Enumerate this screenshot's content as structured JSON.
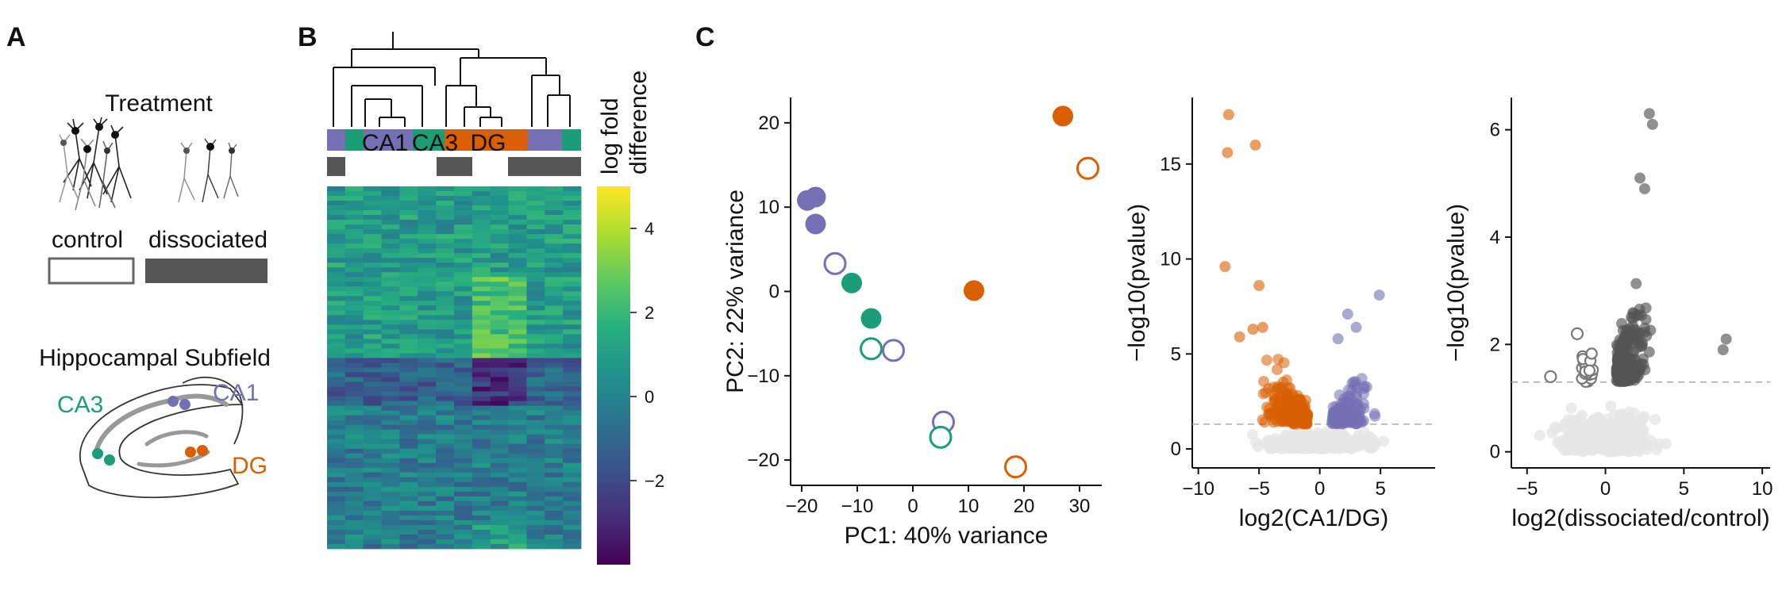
{
  "colors": {
    "ca1": "#7570b3",
    "ca3": "#1b9e77",
    "dg": "#d95f02",
    "dissociated": "#555555",
    "ns": "#e6e6e6",
    "control_open_volcano": "#777777"
  },
  "panelA": {
    "label": "A",
    "treatment_title": "Treatment",
    "control_label": "control",
    "dissociated_label": "dissociated",
    "subfield_title": "Hippocampal Subfield",
    "ca3": "CA3",
    "ca1": "CA1",
    "dg": "DG"
  },
  "panelB": {
    "label": "B",
    "legend_title_line1": "log fold",
    "legend_title_line2": "difference",
    "ca1": "CA1",
    "ca3": "CA3",
    "dg": "DG",
    "colorbar_ticks": [
      "4",
      "2",
      "0",
      "−2"
    ],
    "colorbar_tick_values": [
      4,
      2,
      0,
      -2
    ],
    "colorbar_range": [
      -4,
      5
    ]
  },
  "panelC": {
    "label": "C"
  },
  "chart_data": [
    {
      "type": "heatmap",
      "colorbar_ticks": [
        4,
        2,
        0,
        -2
      ],
      "colorscale": "viridis",
      "colorbar_range": [
        -4,
        5
      ]
    },
    {
      "type": "scatter",
      "xlabel": "PC1: 40% variance",
      "ylabel": "PC2: 22% variance",
      "xticks": [
        "−20",
        "−10",
        "0",
        "10",
        "20",
        "30"
      ],
      "yticks": [
        "20",
        "10",
        "0",
        "−10",
        "−20"
      ],
      "xtick_values": [
        -20,
        -10,
        0,
        10,
        20,
        30
      ],
      "ytick_values": [
        20,
        10,
        0,
        -10,
        -20
      ],
      "xlim": [
        -22,
        34
      ],
      "ylim": [
        -23,
        23
      ],
      "points": [
        {
          "x": -19,
          "y": 10.8,
          "group": "CA1",
          "treatment": "dissociated"
        },
        {
          "x": -17.5,
          "y": 11.2,
          "group": "CA1",
          "treatment": "dissociated"
        },
        {
          "x": -17.5,
          "y": 8,
          "group": "CA1",
          "treatment": "dissociated"
        },
        {
          "x": -14,
          "y": 3.3,
          "group": "CA1",
          "treatment": "control"
        },
        {
          "x": -11,
          "y": 1,
          "group": "CA3",
          "treatment": "dissociated"
        },
        {
          "x": -7.5,
          "y": -3.2,
          "group": "CA3",
          "treatment": "dissociated"
        },
        {
          "x": -7.5,
          "y": -6.8,
          "group": "CA3",
          "treatment": "control"
        },
        {
          "x": -3.5,
          "y": -7,
          "group": "CA1",
          "treatment": "control"
        },
        {
          "x": 11,
          "y": 0.1,
          "group": "DG",
          "treatment": "dissociated"
        },
        {
          "x": 27,
          "y": 20.8,
          "group": "DG",
          "treatment": "dissociated"
        },
        {
          "x": 31.5,
          "y": 14.6,
          "group": "DG",
          "treatment": "control"
        },
        {
          "x": 5.5,
          "y": -15.5,
          "group": "CA1",
          "treatment": "control"
        },
        {
          "x": 5,
          "y": -17.3,
          "group": "CA3",
          "treatment": "control"
        },
        {
          "x": 18.5,
          "y": -20.8,
          "group": "DG",
          "treatment": "control"
        }
      ]
    },
    {
      "type": "scatter",
      "xlabel": "log2(CA1/DG)",
      "ylabel": "−log10(pvalue)",
      "xticks": [
        "−10",
        "−5",
        "0",
        "5"
      ],
      "yticks": [
        "15",
        "10",
        "5",
        "0"
      ],
      "xtick_values": [
        -10,
        -5,
        0,
        5
      ],
      "ytick_values": [
        15,
        10,
        5,
        0
      ],
      "xlim": [
        -10.5,
        9.5
      ],
      "ylim": [
        -1,
        18.5
      ],
      "threshold": 1.3,
      "points": [
        {
          "x": -7.5,
          "y": 17.6,
          "group": "DG"
        },
        {
          "x": -7.6,
          "y": 15.6,
          "group": "DG"
        },
        {
          "x": -5.3,
          "y": 16,
          "group": "DG"
        },
        {
          "x": -7.8,
          "y": 9.6,
          "group": "DG"
        },
        {
          "x": -5,
          "y": 8.6,
          "group": "DG"
        },
        {
          "x": 4.9,
          "y": 8.1,
          "group": "CA1"
        },
        {
          "x": 2.3,
          "y": 7.1,
          "group": "CA1"
        },
        {
          "x": -5.5,
          "y": 6.3,
          "group": "DG"
        },
        {
          "x": -4.7,
          "y": 6.4,
          "group": "DG"
        },
        {
          "x": -6.6,
          "y": 5.9,
          "group": "DG"
        },
        {
          "x": 3,
          "y": 6.4,
          "group": "CA1"
        },
        {
          "x": 1.5,
          "y": 5.8,
          "group": "CA1"
        }
      ]
    },
    {
      "type": "scatter",
      "xlabel": "log2(dissociated/control)",
      "ylabel": "−log10(pvalue)",
      "xticks": [
        "−5",
        "0",
        "5",
        "10"
      ],
      "yticks": [
        "6",
        "4",
        "2",
        "0"
      ],
      "xtick_values": [
        -5,
        0,
        5,
        10
      ],
      "ytick_values": [
        6,
        4,
        2,
        0
      ],
      "xlim": [
        -6,
        10.5
      ],
      "ylim": [
        -0.3,
        6.6
      ],
      "threshold": 1.3,
      "points": [
        {
          "x": 2.8,
          "y": 6.3,
          "group": "dissociated"
        },
        {
          "x": 3,
          "y": 6.1,
          "group": "dissociated"
        },
        {
          "x": 2.2,
          "y": 5.1,
          "group": "dissociated"
        },
        {
          "x": 2.5,
          "y": 4.9,
          "group": "dissociated"
        },
        {
          "x": 7.7,
          "y": 2.1,
          "group": "dissociated"
        },
        {
          "x": 7.5,
          "y": 1.9,
          "group": "dissociated"
        },
        {
          "x": -1.8,
          "y": 2.2,
          "group": "control"
        },
        {
          "x": -3.5,
          "y": 1.4,
          "group": "control"
        }
      ]
    }
  ]
}
